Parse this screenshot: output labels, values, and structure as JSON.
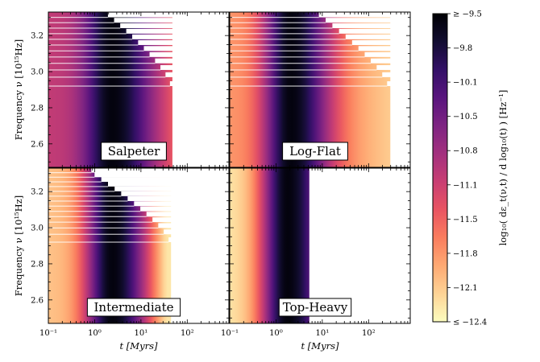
{
  "chart_data": {
    "type": "heatmap",
    "figure_title": "",
    "panels": [
      {
        "name": "Salpeter",
        "cutoff_log_myr": 1.68,
        "peak_log_myr": 0.38,
        "floor_level": 0.45,
        "band_count": 12,
        "taper": 0.5
      },
      {
        "name": "Log-Flat",
        "cutoff_log_myr": 2.47,
        "peak_log_myr": 0.32,
        "floor_level": 0.18,
        "band_count": 12,
        "taper": 0.35
      },
      {
        "name": "Intermediate",
        "cutoff_log_myr": 1.65,
        "peak_log_myr": 0.38,
        "floor_level": 0.08,
        "band_count": 14,
        "taper": 0.8
      },
      {
        "name": "Top-Heavy",
        "cutoff_log_myr": 0.72,
        "peak_log_myr": 0.25,
        "floor_level": 0.0,
        "band_count": 0,
        "taper": 0.0
      }
    ],
    "x_axis": {
      "label": "t [Myrs]",
      "scale": "log",
      "range_log10": [
        -1.0,
        2.9
      ],
      "ticks": [
        {
          "v": -1,
          "label": "10⁻¹"
        },
        {
          "v": 0,
          "label": "10⁰"
        },
        {
          "v": 1,
          "label": "10¹"
        },
        {
          "v": 2,
          "label": "10²"
        }
      ]
    },
    "y_axis": {
      "label": "Frequency ν [10¹⁵Hz]",
      "range": [
        2.47,
        3.33
      ],
      "ticks": [
        "2.6",
        "2.8",
        "3.0",
        "3.2"
      ]
    },
    "colorbar": {
      "label": "log₁₀( dε_t(ν,t) / d log₁₀(t) ) [Hz⁻¹]",
      "range": [
        -12.4,
        -9.5
      ],
      "ticks": [
        "≥ −9.5",
        "−9.8",
        "−10.1",
        "−10.5",
        "−10.8",
        "−11.1",
        "−11.5",
        "−11.8",
        "−12.1",
        "≤ −12.4"
      ],
      "colormap": "magma",
      "colors": [
        "#fcfdbf",
        "#fed395",
        "#fea973",
        "#fa7d5e",
        "#e95462",
        "#c83e73",
        "#a3307e",
        "#7e2482",
        "#59157e",
        "#331067",
        "#120d31",
        "#000004"
      ]
    }
  }
}
